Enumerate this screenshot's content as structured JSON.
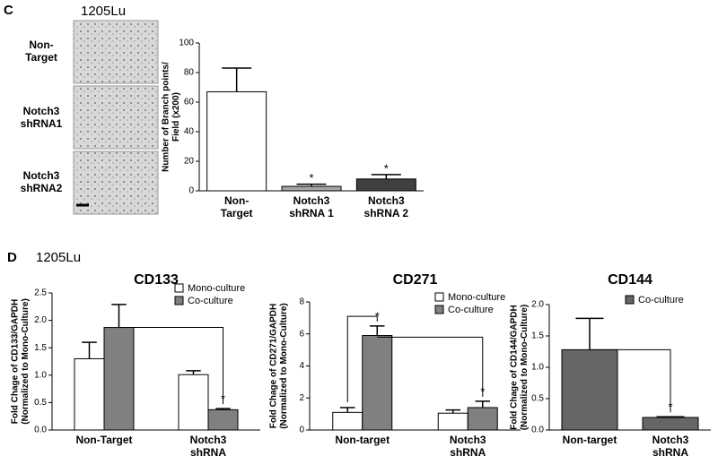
{
  "panel_labels": [
    "C",
    "D"
  ],
  "cell_lines": [
    "1205Lu",
    "1205Lu"
  ],
  "images": {
    "rows": [
      "Non-\nTarget",
      "Notch3\nshRNA1",
      "Notch3\nshRNA2"
    ]
  },
  "chart_data": [
    {
      "type": "bar",
      "ylabel": "Number of Branch points/\nField  (x200)",
      "categories": [
        "Non-\nTarget",
        "Notch3\nshRNA 1",
        "Notch3\nshRNA 2"
      ],
      "values": [
        67,
        3,
        8
      ],
      "errors": [
        16,
        1.5,
        3
      ],
      "colors": [
        "#ffffff",
        "#a6a6a6",
        "#3f3f3f"
      ],
      "annotations": [
        "*",
        "*"
      ],
      "ylim": [
        0,
        100
      ],
      "yticks": [
        0,
        20,
        40,
        60,
        80,
        100
      ]
    },
    {
      "type": "bar",
      "title": "CD133",
      "ylabel": "Fold Chage of CD133/GAPDH\n(Normalized to Mono-Culture)",
      "categories": [
        "Non-Target",
        "Notch3\nshRNA"
      ],
      "series": [
        {
          "name": "Mono-culture",
          "color": "#ffffff",
          "values": [
            1.3,
            1.01
          ],
          "errors": [
            0.3,
            0.07
          ]
        },
        {
          "name": "Co-culture",
          "color": "#808080",
          "values": [
            1.87,
            0.37
          ],
          "errors": [
            0.42,
            0.02
          ]
        }
      ],
      "annotations": [
        "*"
      ],
      "legend": "upper right",
      "ylim": [
        0,
        2.5
      ],
      "yticks": [
        {
          "value": 0,
          "label": "0.0"
        },
        0.5,
        {
          "value": 1,
          "label": "1.0"
        },
        1.5,
        {
          "value": 2,
          "label": "2.0"
        },
        2.5
      ]
    },
    {
      "type": "bar",
      "title": "CD271",
      "ylabel": "Fold Chage of CD271/GAPDH\n(Normalized to Mono-Culture)",
      "categories": [
        "Non-target",
        "Notch3\nshRNA"
      ],
      "series": [
        {
          "name": "Mono-culture",
          "color": "#ffffff",
          "values": [
            1.1,
            1.05
          ],
          "errors": [
            0.3,
            0.2
          ]
        },
        {
          "name": "Co-culture",
          "color": "#808080",
          "values": [
            5.9,
            1.4
          ],
          "errors": [
            0.6,
            0.4
          ]
        }
      ],
      "annotations": [
        "*",
        "*"
      ],
      "legend": "upper right",
      "ylim": [
        0,
        8
      ],
      "yticks": [
        0,
        2,
        4,
        6,
        8
      ]
    },
    {
      "type": "bar",
      "title": "CD144",
      "ylabel": "Fold Chage of CD144/GAPDH\n(Normalized to Mono-Culture)",
      "categories": [
        "Non-target",
        "Notch3\nshRNA"
      ],
      "series": [
        {
          "name": "Co-culture",
          "color": "#666666",
          "values": [
            1.28,
            0.2
          ],
          "errors": [
            0.5,
            0.01
          ]
        }
      ],
      "annotations": [
        "*"
      ],
      "legend": "upper right",
      "ylim": [
        0,
        2.0
      ],
      "yticks": [
        {
          "value": 0,
          "label": "0.0"
        },
        0.5,
        {
          "value": 1,
          "label": "1.0"
        },
        1.5,
        {
          "value": 2,
          "label": "2.0"
        }
      ]
    }
  ]
}
